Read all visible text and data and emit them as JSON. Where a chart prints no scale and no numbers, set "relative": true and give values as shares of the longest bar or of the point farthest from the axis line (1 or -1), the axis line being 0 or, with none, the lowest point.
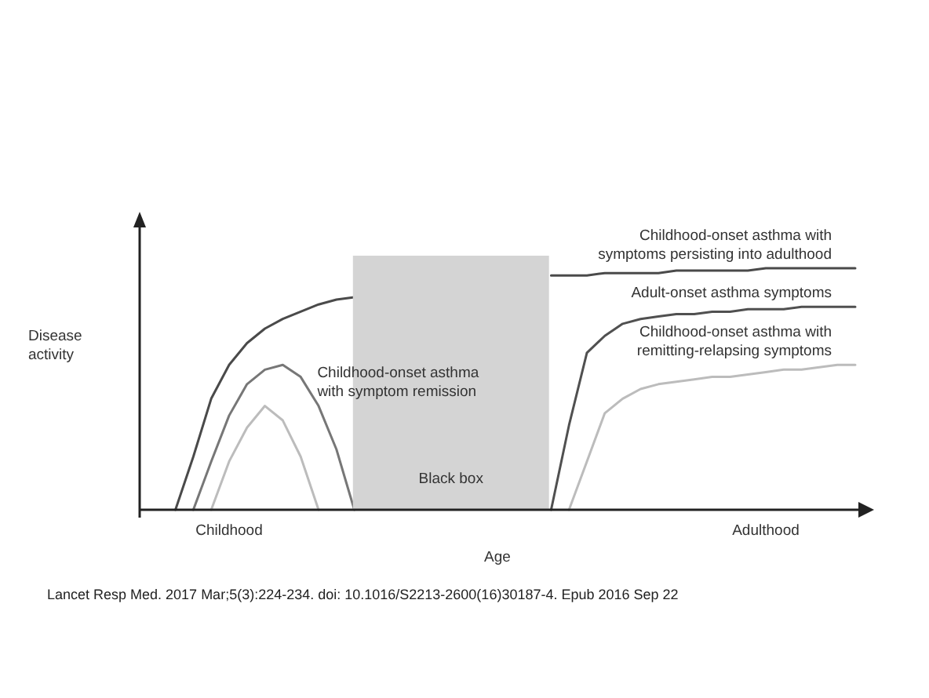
{
  "chart_data": {
    "type": "line",
    "relative": true,
    "xlabel": "Age",
    "ylabel": "Disease activity",
    "categories": [
      null,
      null,
      null,
      null,
      null,
      "Childhood",
      null,
      null,
      null,
      null,
      null,
      null,
      null,
      null,
      null,
      null,
      null,
      null,
      null,
      null,
      null,
      null,
      null,
      null,
      null,
      null,
      null,
      null,
      null,
      null,
      null,
      null,
      null,
      null,
      null,
      "Adulthood",
      null,
      null,
      null,
      null,
      null
    ],
    "series": [
      {
        "name": "Childhood-onset asthma with symptoms persisting into adulthood",
        "color": "#4a4a4a",
        "values": [
          null,
          null,
          0,
          0.22,
          0.46,
          0.6,
          0.69,
          0.75,
          0.79,
          0.82,
          0.85,
          0.87,
          0.88,
          null,
          null,
          null,
          null,
          null,
          null,
          null,
          null,
          null,
          null,
          0.97,
          0.97,
          0.97,
          0.98,
          0.98,
          0.98,
          0.98,
          0.99,
          0.99,
          0.99,
          0.99,
          0.99,
          1,
          1,
          1,
          1,
          1,
          1
        ]
      },
      {
        "name": "Adult-onset asthma symptoms",
        "color": "#505050",
        "values": [
          null,
          null,
          null,
          null,
          null,
          null,
          null,
          null,
          null,
          null,
          null,
          null,
          null,
          null,
          null,
          null,
          null,
          null,
          null,
          null,
          null,
          null,
          null,
          0,
          0.35,
          0.65,
          0.72,
          0.77,
          0.79,
          0.8,
          0.81,
          0.81,
          0.82,
          0.82,
          0.83,
          0.83,
          0.83,
          0.84,
          0.84,
          0.84,
          0.84
        ]
      },
      {
        "name": "Childhood-onset asthma with remitting-relapsing symptoms",
        "color": "#bcbcbc",
        "values": [
          null,
          null,
          null,
          null,
          0,
          0.2,
          0.34,
          0.43,
          0.37,
          0.22,
          0,
          null,
          null,
          null,
          null,
          null,
          null,
          null,
          null,
          null,
          null,
          null,
          null,
          null,
          0,
          0.2,
          0.4,
          0.46,
          0.5,
          0.52,
          0.53,
          0.54,
          0.55,
          0.55,
          0.56,
          0.57,
          0.58,
          0.58,
          0.59,
          0.6,
          0.6
        ]
      },
      {
        "name": "Childhood-onset asthma with symptom remission",
        "color": "#777777",
        "values": [
          null,
          null,
          null,
          0,
          0.2,
          0.39,
          0.52,
          0.58,
          0.6,
          0.55,
          0.43,
          0.25,
          0,
          null,
          null,
          null,
          null,
          null,
          null,
          null,
          null,
          null,
          null,
          null,
          null,
          null,
          null,
          null,
          null,
          null,
          null,
          null,
          null,
          null,
          null,
          null,
          null,
          null,
          null,
          null,
          null
        ]
      }
    ],
    "annotations": [
      {
        "text": "Black box"
      },
      "Lancet Resp Med. 2017 Mar;5(3):224-234. doi: 10.1016/S2213-2600(16)30187-4. Epub 2016 Sep 22"
    ]
  }
}
